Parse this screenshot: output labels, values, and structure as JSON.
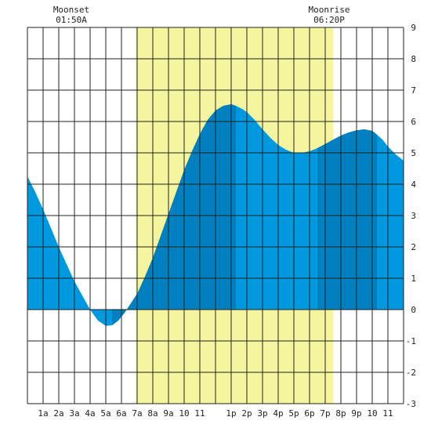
{
  "header": {
    "moonset_title": "Moonset",
    "moonset_time": "01:50A",
    "moonrise_title": "Moonrise",
    "moonrise_time": "06:20P"
  },
  "colors": {
    "daylight": "#f5f5a0",
    "tide_light": "#0099e0",
    "tide_dark": "#0080c0",
    "grid": "#222222",
    "background": "#ffffff"
  },
  "chart_data": {
    "type": "area",
    "title": "",
    "xlabel": "",
    "ylabel": "",
    "x_tick_labels": [
      "1a",
      "2a",
      "3a",
      "4a",
      "5a",
      "6a",
      "7a",
      "8a",
      "9a",
      "10",
      "11",
      "1p",
      "2p",
      "3p",
      "4p",
      "5p",
      "6p",
      "7p",
      "8p",
      "9p",
      "10",
      "11"
    ],
    "x_tick_hours": [
      1,
      2,
      3,
      4,
      5,
      6,
      7,
      8,
      9,
      10,
      11,
      13,
      14,
      15,
      16,
      17,
      18,
      19,
      20,
      21,
      22,
      23
    ],
    "y_tick_labels": [
      "9",
      "8",
      "7",
      "6",
      "5",
      "4",
      "3",
      "2",
      "1",
      "0",
      "-1",
      "-2",
      "-3"
    ],
    "y_tick_values": [
      9,
      8,
      7,
      6,
      5,
      4,
      3,
      2,
      1,
      0,
      -1,
      -2,
      -3
    ],
    "xlim": [
      0,
      24
    ],
    "ylim": [
      -3,
      9
    ],
    "grid": true,
    "daylight_hours": [
      6.9,
      19.5
    ],
    "moonset_hour": 1.83,
    "moonrise_hour": 18.33,
    "dark_bands_hours": [
      [
        5.4,
        6.9
      ],
      [
        6.9,
        13.3
      ],
      [
        18.5,
        22.3
      ]
    ],
    "series": [
      {
        "x": [
          0,
          0.5,
          1,
          1.5,
          2,
          2.5,
          3,
          3.5,
          4,
          4.5,
          5,
          5.4,
          5.8,
          6.2,
          6.6,
          7,
          7.5,
          8,
          8.5,
          9,
          9.5,
          10,
          10.5,
          11,
          11.5,
          12,
          12.5,
          13,
          13.3,
          13.7,
          14,
          14.5,
          15,
          15.5,
          16,
          16.5,
          17,
          17.5,
          18,
          18.5,
          19,
          19.5,
          20,
          20.5,
          21,
          21.5,
          22,
          22.3,
          22.7,
          23,
          23.5,
          24
        ],
        "values": [
          4.25,
          3.75,
          3.2,
          2.6,
          2.0,
          1.45,
          0.9,
          0.45,
          0.0,
          -0.35,
          -0.52,
          -0.5,
          -0.35,
          -0.1,
          0.2,
          0.5,
          1.05,
          1.65,
          2.35,
          3.05,
          3.75,
          4.45,
          5.05,
          5.6,
          6.05,
          6.35,
          6.5,
          6.55,
          6.5,
          6.4,
          6.3,
          6.05,
          5.75,
          5.48,
          5.25,
          5.1,
          5.0,
          5.0,
          5.05,
          5.15,
          5.28,
          5.42,
          5.55,
          5.65,
          5.72,
          5.75,
          5.7,
          5.58,
          5.4,
          5.2,
          4.95,
          4.75
        ]
      }
    ]
  }
}
